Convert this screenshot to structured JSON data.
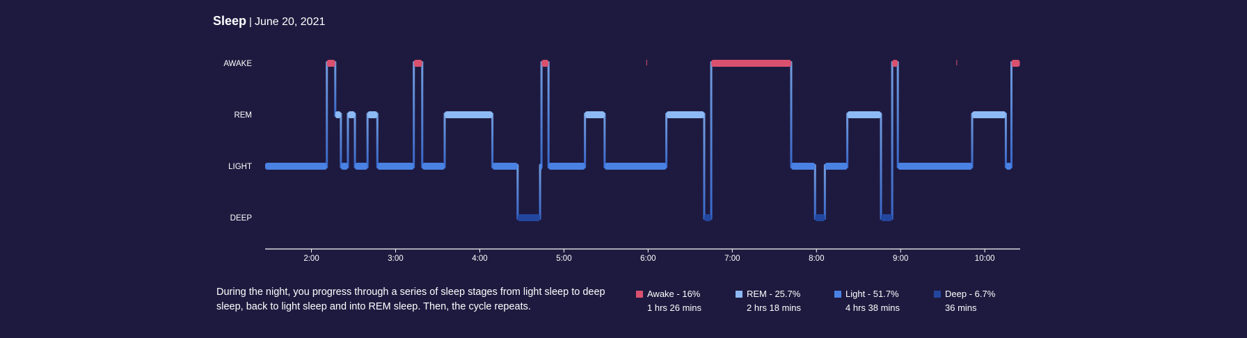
{
  "header": {
    "title": "Sleep",
    "separator": "|",
    "date": "June 20, 2021"
  },
  "chart_data": {
    "type": "area",
    "title": "Sleep | June 20, 2021",
    "stages": [
      "AWAKE",
      "REM",
      "LIGHT",
      "DEEP"
    ],
    "stage_colors": {
      "AWAKE": "#d9516f",
      "REM": "#8dbaf5",
      "LIGHT": "#4a82e4",
      "DEEP": "#23479f"
    },
    "x_axis": {
      "ticks": [
        "2:00",
        "3:00",
        "4:00",
        "5:00",
        "6:00",
        "7:00",
        "8:00",
        "9:00",
        "10:00"
      ],
      "tick_hours": [
        2,
        3,
        4,
        5,
        6,
        7,
        8,
        9,
        10
      ],
      "range_hours": [
        1.45,
        10.42
      ]
    },
    "segments": [
      {
        "stage": "LIGHT",
        "start": "1:27",
        "end": "2:11"
      },
      {
        "stage": "AWAKE",
        "start": "2:11",
        "end": "2:17"
      },
      {
        "stage": "REM",
        "start": "2:17",
        "end": "2:21"
      },
      {
        "stage": "LIGHT",
        "start": "2:21",
        "end": "2:26"
      },
      {
        "stage": "REM",
        "start": "2:26",
        "end": "2:31"
      },
      {
        "stage": "LIGHT",
        "start": "2:31",
        "end": "2:40"
      },
      {
        "stage": "REM",
        "start": "2:40",
        "end": "2:47"
      },
      {
        "stage": "LIGHT",
        "start": "2:47",
        "end": "3:13"
      },
      {
        "stage": "AWAKE",
        "start": "3:13",
        "end": "3:19"
      },
      {
        "stage": "LIGHT",
        "start": "3:19",
        "end": "3:35"
      },
      {
        "stage": "REM",
        "start": "3:35",
        "end": "4:09"
      },
      {
        "stage": "LIGHT",
        "start": "4:09",
        "end": "4:27"
      },
      {
        "stage": "DEEP",
        "start": "4:27",
        "end": "4:43"
      },
      {
        "stage": "LIGHT",
        "start": "4:43",
        "end": "4:44"
      },
      {
        "stage": "AWAKE",
        "start": "4:44",
        "end": "4:49"
      },
      {
        "stage": "LIGHT",
        "start": "4:49",
        "end": "5:15"
      },
      {
        "stage": "REM",
        "start": "5:15",
        "end": "5:29"
      },
      {
        "stage": "LIGHT",
        "start": "5:29",
        "end": "6:13"
      },
      {
        "stage": "REM",
        "start": "6:13",
        "end": "6:40"
      },
      {
        "stage": "DEEP",
        "start": "6:40",
        "end": "6:45"
      },
      {
        "stage": "AWAKE",
        "start": "6:45",
        "end": "7:42"
      },
      {
        "stage": "LIGHT",
        "start": "7:42",
        "end": "7:59"
      },
      {
        "stage": "DEEP",
        "start": "7:59",
        "end": "8:06"
      },
      {
        "stage": "LIGHT",
        "start": "8:06",
        "end": "8:22"
      },
      {
        "stage": "REM",
        "start": "8:22",
        "end": "8:46"
      },
      {
        "stage": "DEEP",
        "start": "8:46",
        "end": "8:54"
      },
      {
        "stage": "AWAKE",
        "start": "8:54",
        "end": "8:58"
      },
      {
        "stage": "LIGHT",
        "start": "8:58",
        "end": "9:51"
      },
      {
        "stage": "REM",
        "start": "9:51",
        "end": "10:15"
      },
      {
        "stage": "LIGHT",
        "start": "10:15",
        "end": "10:19"
      },
      {
        "stage": "AWAKE",
        "start": "10:19",
        "end": "10:25"
      }
    ],
    "brief_awake_marks": [
      "5:59",
      "9:40"
    ],
    "legend": [
      {
        "stage": "Awake",
        "label": "Awake - 16%",
        "percent": 16,
        "duration": "1 hrs 26 mins"
      },
      {
        "stage": "REM",
        "label": "REM - 25.7%",
        "percent": 25.7,
        "duration": "2 hrs 18 mins"
      },
      {
        "stage": "Light",
        "label": "Light - 51.7%",
        "percent": 51.7,
        "duration": "4 hrs 38 mins"
      },
      {
        "stage": "Deep",
        "label": "Deep - 6.7%",
        "percent": 6.7,
        "duration": "36 mins"
      }
    ]
  },
  "description": "During the night, you progress through a series of sleep stages from light sleep to deep sleep, back to light sleep and into REM sleep. Then, the cycle repeats."
}
